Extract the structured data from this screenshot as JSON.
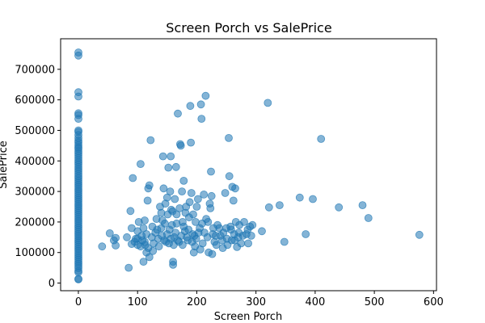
{
  "chart_data": {
    "type": "scatter",
    "title": "Screen Porch vs SalePrice",
    "xlabel": "Screen Porch",
    "ylabel": "SalePrice",
    "xlim": [
      -30,
      605
    ],
    "ylim": [
      -25000,
      800000
    ],
    "xticks": [
      0,
      100,
      200,
      300,
      400,
      500,
      600
    ],
    "yticks": [
      0,
      100000,
      200000,
      300000,
      400000,
      500000,
      600000,
      700000
    ],
    "grid": false,
    "legend": "none",
    "marker_color": "#1f77b4",
    "marker_alpha": 0.55,
    "zero_column_values": [
      755000,
      745000,
      625000,
      611000,
      556000,
      550000,
      538000,
      500000,
      495000,
      485000,
      475000,
      466000,
      460000,
      452000,
      445000,
      440000,
      432000,
      425000,
      418000,
      410000,
      402000,
      395000,
      388000,
      380000,
      373000,
      366000,
      358000,
      350000,
      343000,
      336000,
      329000,
      322000,
      315000,
      308000,
      301000,
      294000,
      287000,
      280000,
      273000,
      266000,
      259000,
      252000,
      245000,
      238000,
      231000,
      224000,
      217000,
      210000,
      203000,
      196000,
      189000,
      182000,
      175000,
      168000,
      161000,
      154000,
      147000,
      140000,
      133000,
      126000,
      119000,
      112000,
      105000,
      98000,
      91000,
      84000,
      77000,
      70000,
      63000,
      56000,
      49000,
      40000,
      35000,
      14000,
      12000
    ],
    "points": [
      {
        "x": 40,
        "y": 120000
      },
      {
        "x": 53,
        "y": 163000
      },
      {
        "x": 60,
        "y": 140000
      },
      {
        "x": 63,
        "y": 123000
      },
      {
        "x": 63,
        "y": 148000
      },
      {
        "x": 82,
        "y": 150000
      },
      {
        "x": 85,
        "y": 50000
      },
      {
        "x": 88,
        "y": 236000
      },
      {
        "x": 90,
        "y": 128000
      },
      {
        "x": 90,
        "y": 180000
      },
      {
        "x": 92,
        "y": 344000
      },
      {
        "x": 95,
        "y": 135000
      },
      {
        "x": 97,
        "y": 145000
      },
      {
        "x": 100,
        "y": 125000
      },
      {
        "x": 100,
        "y": 170000
      },
      {
        "x": 102,
        "y": 200000
      },
      {
        "x": 105,
        "y": 390000
      },
      {
        "x": 108,
        "y": 140000
      },
      {
        "x": 110,
        "y": 70000
      },
      {
        "x": 110,
        "y": 180000
      },
      {
        "x": 112,
        "y": 205000
      },
      {
        "x": 113,
        "y": 125000
      },
      {
        "x": 115,
        "y": 100000
      },
      {
        "x": 115,
        "y": 160000
      },
      {
        "x": 117,
        "y": 270000
      },
      {
        "x": 118,
        "y": 310000
      },
      {
        "x": 120,
        "y": 85000
      },
      {
        "x": 120,
        "y": 320000
      },
      {
        "x": 122,
        "y": 468000
      },
      {
        "x": 125,
        "y": 185000
      },
      {
        "x": 127,
        "y": 130000
      },
      {
        "x": 130,
        "y": 165000
      },
      {
        "x": 132,
        "y": 210000
      },
      {
        "x": 135,
        "y": 145000
      },
      {
        "x": 138,
        "y": 250000
      },
      {
        "x": 140,
        "y": 180000
      },
      {
        "x": 142,
        "y": 205000
      },
      {
        "x": 143,
        "y": 415000
      },
      {
        "x": 144,
        "y": 310000
      },
      {
        "x": 145,
        "y": 140000
      },
      {
        "x": 147,
        "y": 260000
      },
      {
        "x": 150,
        "y": 160000
      },
      {
        "x": 151,
        "y": 225000
      },
      {
        "x": 152,
        "y": 378000
      },
      {
        "x": 153,
        "y": 130000
      },
      {
        "x": 155,
        "y": 300000
      },
      {
        "x": 156,
        "y": 415000
      },
      {
        "x": 157,
        "y": 240000
      },
      {
        "x": 158,
        "y": 190000
      },
      {
        "x": 160,
        "y": 70000
      },
      {
        "x": 160,
        "y": 60000
      },
      {
        "x": 162,
        "y": 150000
      },
      {
        "x": 163,
        "y": 275000
      },
      {
        "x": 165,
        "y": 380000
      },
      {
        "x": 166,
        "y": 225000
      },
      {
        "x": 168,
        "y": 555000
      },
      {
        "x": 170,
        "y": 135000
      },
      {
        "x": 172,
        "y": 455000
      },
      {
        "x": 173,
        "y": 450000
      },
      {
        "x": 175,
        "y": 300000
      },
      {
        "x": 176,
        "y": 200000
      },
      {
        "x": 178,
        "y": 335000
      },
      {
        "x": 180,
        "y": 170000
      },
      {
        "x": 182,
        "y": 250000
      },
      {
        "x": 185,
        "y": 140000
      },
      {
        "x": 187,
        "y": 215000
      },
      {
        "x": 189,
        "y": 580000
      },
      {
        "x": 190,
        "y": 460000
      },
      {
        "x": 191,
        "y": 295000
      },
      {
        "x": 193,
        "y": 160000
      },
      {
        "x": 195,
        "y": 100000
      },
      {
        "x": 197,
        "y": 120000
      },
      {
        "x": 198,
        "y": 200000
      },
      {
        "x": 200,
        "y": 250000
      },
      {
        "x": 202,
        "y": 275000
      },
      {
        "x": 205,
        "y": 180000
      },
      {
        "x": 207,
        "y": 585000
      },
      {
        "x": 208,
        "y": 538000
      },
      {
        "x": 210,
        "y": 130000
      },
      {
        "x": 212,
        "y": 290000
      },
      {
        "x": 215,
        "y": 613000
      },
      {
        "x": 216,
        "y": 210000
      },
      {
        "x": 218,
        "y": 150000
      },
      {
        "x": 220,
        "y": 100000
      },
      {
        "x": 222,
        "y": 260000
      },
      {
        "x": 224,
        "y": 365000
      },
      {
        "x": 225,
        "y": 285000
      },
      {
        "x": 226,
        "y": 95000
      },
      {
        "x": 228,
        "y": 180000
      },
      {
        "x": 230,
        "y": 135000
      },
      {
        "x": 232,
        "y": 155000
      },
      {
        "x": 235,
        "y": 190000
      },
      {
        "x": 240,
        "y": 155000
      },
      {
        "x": 243,
        "y": 140000
      },
      {
        "x": 245,
        "y": 165000
      },
      {
        "x": 248,
        "y": 295000
      },
      {
        "x": 250,
        "y": 180000
      },
      {
        "x": 252,
        "y": 125000
      },
      {
        "x": 254,
        "y": 475000
      },
      {
        "x": 255,
        "y": 350000
      },
      {
        "x": 257,
        "y": 185000
      },
      {
        "x": 259,
        "y": 140000
      },
      {
        "x": 260,
        "y": 315000
      },
      {
        "x": 262,
        "y": 270000
      },
      {
        "x": 263,
        "y": 160000
      },
      {
        "x": 265,
        "y": 310000
      },
      {
        "x": 266,
        "y": 200000
      },
      {
        "x": 268,
        "y": 118000
      },
      {
        "x": 270,
        "y": 150000
      },
      {
        "x": 272,
        "y": 190000
      },
      {
        "x": 275,
        "y": 130000
      },
      {
        "x": 280,
        "y": 200000
      },
      {
        "x": 284,
        "y": 160000
      },
      {
        "x": 287,
        "y": 130000
      },
      {
        "x": 290,
        "y": 185000
      },
      {
        "x": 292,
        "y": 155000
      },
      {
        "x": 310,
        "y": 170000
      },
      {
        "x": 320,
        "y": 590000
      },
      {
        "x": 322,
        "y": 248000
      },
      {
        "x": 340,
        "y": 255000
      },
      {
        "x": 348,
        "y": 135000
      },
      {
        "x": 374,
        "y": 280000
      },
      {
        "x": 384,
        "y": 160000
      },
      {
        "x": 396,
        "y": 275000
      },
      {
        "x": 410,
        "y": 472000
      },
      {
        "x": 440,
        "y": 248000
      },
      {
        "x": 480,
        "y": 255000
      },
      {
        "x": 490,
        "y": 213000
      },
      {
        "x": 576,
        "y": 158000
      },
      {
        "x": 100,
        "y": 145000
      },
      {
        "x": 105,
        "y": 120000
      },
      {
        "x": 107,
        "y": 155000
      },
      {
        "x": 112,
        "y": 135000
      },
      {
        "x": 118,
        "y": 115000
      },
      {
        "x": 124,
        "y": 150000
      },
      {
        "x": 126,
        "y": 105000
      },
      {
        "x": 133,
        "y": 175000
      },
      {
        "x": 136,
        "y": 120000
      },
      {
        "x": 140,
        "y": 230000
      },
      {
        "x": 141,
        "y": 155000
      },
      {
        "x": 146,
        "y": 195000
      },
      {
        "x": 148,
        "y": 135000
      },
      {
        "x": 150,
        "y": 280000
      },
      {
        "x": 154,
        "y": 175000
      },
      {
        "x": 156,
        "y": 145000
      },
      {
        "x": 159,
        "y": 235000
      },
      {
        "x": 161,
        "y": 125000
      },
      {
        "x": 164,
        "y": 165000
      },
      {
        "x": 166,
        "y": 195000
      },
      {
        "x": 168,
        "y": 140000
      },
      {
        "x": 171,
        "y": 245000
      },
      {
        "x": 174,
        "y": 155000
      },
      {
        "x": 176,
        "y": 125000
      },
      {
        "x": 178,
        "y": 185000
      },
      {
        "x": 181,
        "y": 230000
      },
      {
        "x": 183,
        "y": 150000
      },
      {
        "x": 186,
        "y": 175000
      },
      {
        "x": 188,
        "y": 265000
      },
      {
        "x": 192,
        "y": 135000
      },
      {
        "x": 194,
        "y": 225000
      },
      {
        "x": 196,
        "y": 155000
      },
      {
        "x": 199,
        "y": 145000
      },
      {
        "x": 203,
        "y": 165000
      },
      {
        "x": 206,
        "y": 110000
      },
      {
        "x": 209,
        "y": 195000
      },
      {
        "x": 213,
        "y": 165000
      },
      {
        "x": 219,
        "y": 200000
      },
      {
        "x": 223,
        "y": 245000
      },
      {
        "x": 227,
        "y": 160000
      },
      {
        "x": 233,
        "y": 125000
      },
      {
        "x": 238,
        "y": 180000
      },
      {
        "x": 244,
        "y": 115000
      },
      {
        "x": 251,
        "y": 145000
      },
      {
        "x": 258,
        "y": 175000
      },
      {
        "x": 264,
        "y": 140000
      },
      {
        "x": 271,
        "y": 165000
      },
      {
        "x": 278,
        "y": 155000
      },
      {
        "x": 286,
        "y": 175000
      },
      {
        "x": 294,
        "y": 190000
      }
    ]
  }
}
